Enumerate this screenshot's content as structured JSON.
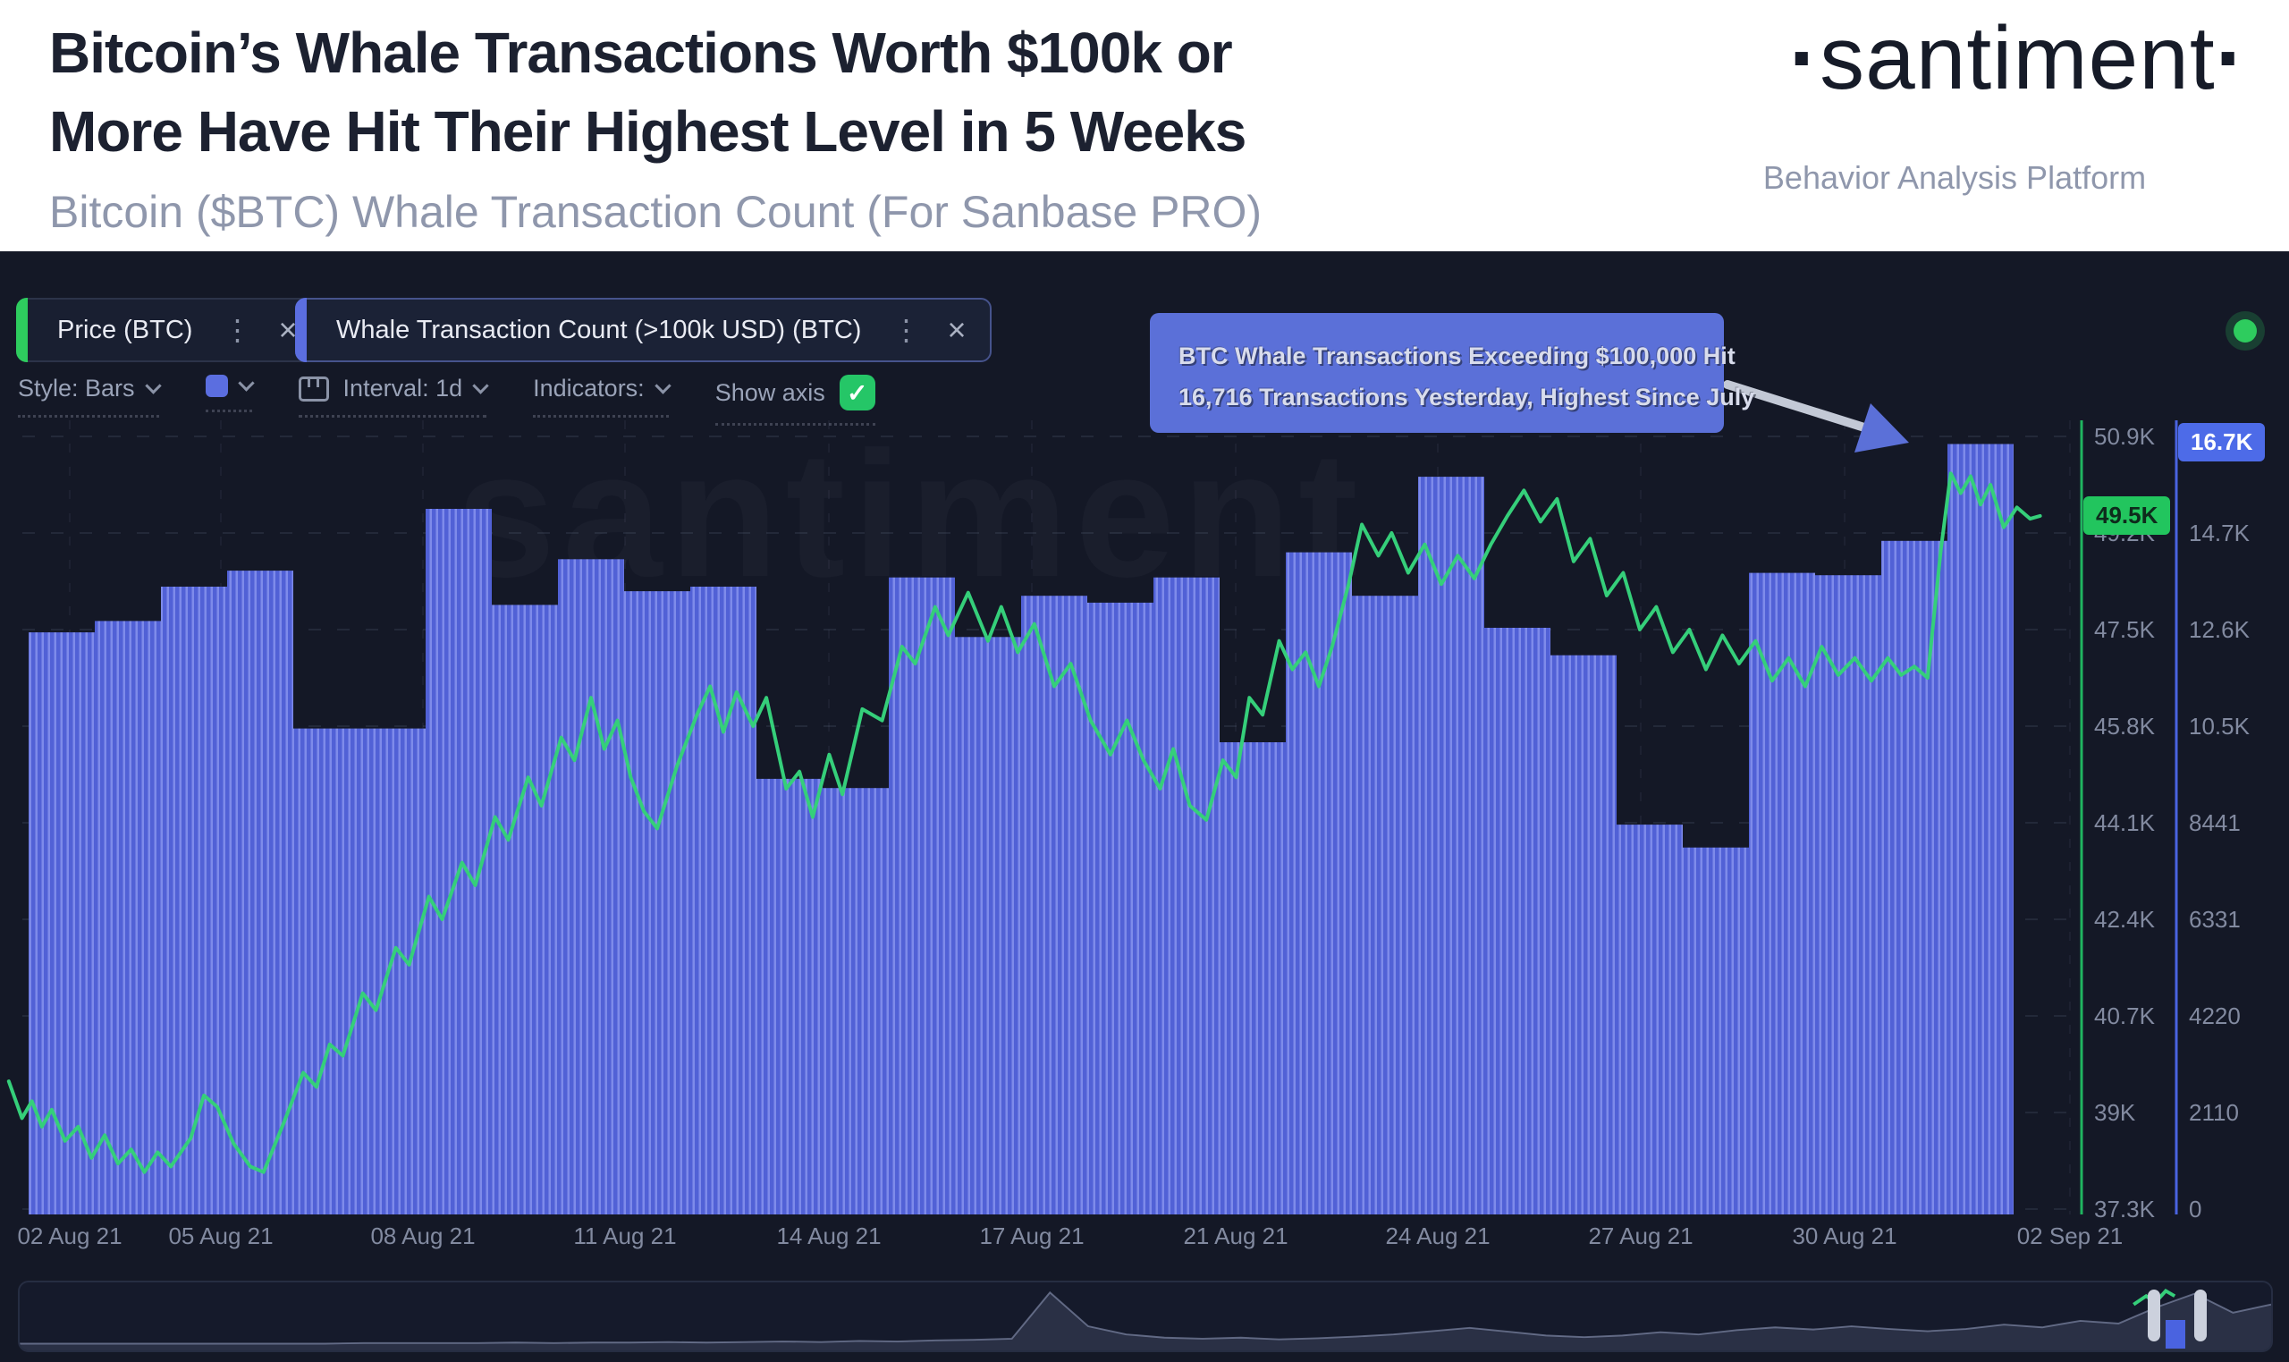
{
  "header": {
    "title_line1": "Bitcoin’s Whale Transactions Worth $100k or",
    "title_line2": "More Have Hit Their Highest Level in 5 Weeks",
    "subtitle": "Bitcoin ($BTC) Whale Transaction Count (For Sanbase PRO)",
    "logo_dot": "·",
    "logo_text": "santiment",
    "logo_tagline": "Behavior Analysis Platform"
  },
  "toolbar": {
    "menu_glyph": "⋮",
    "close_glyph": "×",
    "tabs": [
      {
        "label": "Price (BTC)",
        "accent_color": "#2ecc5e"
      },
      {
        "label": "Whale Transaction Count (>100k USD) (BTC)",
        "accent_color": "#5b6ee0"
      }
    ],
    "style_label": "Style: Bars",
    "interval_label": "Interval: 1d",
    "indicators_label": "Indicators:",
    "show_axis_label": "Show axis",
    "checkbox_glyph": "✓",
    "series_color_chip": "#5b6ee0"
  },
  "annotation": {
    "line1": "BTC Whale Transactions Exceeding $100,000 Hit",
    "line2": "16,716 Transactions Yesterday, Highest Since July"
  },
  "axes": {
    "price_ticks": [
      "50.9K",
      "49.2K",
      "47.5K",
      "45.8K",
      "44.1K",
      "42.4K",
      "40.7K",
      "39K",
      "37.3K"
    ],
    "count_ticks": [
      "16.8K",
      "14.7K",
      "12.6K",
      "10.5K",
      "8441",
      "6331",
      "4220",
      "2110",
      "0"
    ],
    "price_badge": "49.5K",
    "count_badge": "16.7K",
    "price_axis_color": "#1fb45f",
    "count_axis_color": "#4a63e0"
  },
  "x_labels": [
    "02 Aug 21",
    "05 Aug 21",
    "08 Aug 21",
    "11 Aug 21",
    "14 Aug 21",
    "17 Aug 21",
    "21 Aug 21",
    "24 Aug 21",
    "27 Aug 21",
    "30 Aug 21",
    "02 Sep 21"
  ],
  "chart_data": {
    "type": "bar+line",
    "title": "Bitcoin (BTC) price vs Whale Transaction Count (>100k USD), daily, 02 Aug 21 – 02 Sep 21",
    "x_labels": [
      "02 Aug 21",
      "05 Aug 21",
      "08 Aug 21",
      "11 Aug 21",
      "14 Aug 21",
      "17 Aug 21",
      "21 Aug 21",
      "24 Aug 21",
      "27 Aug 21",
      "30 Aug 21",
      "02 Sep 21"
    ],
    "x_gridlines": [
      78,
      247,
      473,
      699,
      927,
      1154,
      1382,
      1608,
      1835,
      2063,
      2315
    ],
    "bar_series": {
      "name": "Whale Transaction Count (>100k USD) (BTC)",
      "color": "#5b6ce0",
      "axis": "right",
      "ylim": [
        0,
        16882
      ],
      "tick_values": [
        16882,
        14772,
        12661,
        10551,
        8441,
        6331,
        4220,
        2110,
        0
      ],
      "values": [
        12600,
        12850,
        13600,
        13950,
        10500,
        10500,
        15300,
        13200,
        14200,
        13500,
        13600,
        9400,
        9200,
        13800,
        12500,
        13400,
        13250,
        13800,
        10200,
        14350,
        13400,
        16000,
        12700,
        12100,
        8400,
        7900,
        13900,
        13850,
        14600,
        16716
      ],
      "peak_value": 16716,
      "current_value": 16716
    },
    "line_series": {
      "name": "Price (BTC)",
      "color": "#35cf7a",
      "axis": "left",
      "ylim": [
        37300,
        50900
      ],
      "tick_values": [
        50900,
        49200,
        47500,
        45800,
        44100,
        42400,
        40700,
        39000,
        37300
      ],
      "current_value": 49500,
      "points": [
        [
          -0.8,
          39.55
        ],
        [
          -0.6,
          38.9
        ],
        [
          -0.45,
          39.2
        ],
        [
          -0.3,
          38.75
        ],
        [
          -0.15,
          39.05
        ],
        [
          0.05,
          38.5
        ],
        [
          0.25,
          38.75
        ],
        [
          0.45,
          38.2
        ],
        [
          0.65,
          38.6
        ],
        [
          0.85,
          38.1
        ],
        [
          1.05,
          38.35
        ],
        [
          1.25,
          37.95
        ],
        [
          1.45,
          38.3
        ],
        [
          1.65,
          38.05
        ],
        [
          1.95,
          38.55
        ],
        [
          2.15,
          39.3
        ],
        [
          2.35,
          39.1
        ],
        [
          2.6,
          38.45
        ],
        [
          2.85,
          38.05
        ],
        [
          3.05,
          37.95
        ],
        [
          3.35,
          38.8
        ],
        [
          3.65,
          39.7
        ],
        [
          3.85,
          39.45
        ],
        [
          4.05,
          40.2
        ],
        [
          4.25,
          40.0
        ],
        [
          4.55,
          41.1
        ],
        [
          4.75,
          40.8
        ],
        [
          5.05,
          41.9
        ],
        [
          5.25,
          41.6
        ],
        [
          5.55,
          42.8
        ],
        [
          5.75,
          42.4
        ],
        [
          6.05,
          43.4
        ],
        [
          6.25,
          43.0
        ],
        [
          6.55,
          44.2
        ],
        [
          6.75,
          43.8
        ],
        [
          7.05,
          44.9
        ],
        [
          7.25,
          44.4
        ],
        [
          7.55,
          45.6
        ],
        [
          7.75,
          45.2
        ],
        [
          8.0,
          46.3
        ],
        [
          8.2,
          45.4
        ],
        [
          8.4,
          45.9
        ],
        [
          8.6,
          44.9
        ],
        [
          8.8,
          44.3
        ],
        [
          9.0,
          44.0
        ],
        [
          9.3,
          45.1
        ],
        [
          9.6,
          46.0
        ],
        [
          9.8,
          46.5
        ],
        [
          10.0,
          45.7
        ],
        [
          10.2,
          46.4
        ],
        [
          10.45,
          45.8
        ],
        [
          10.65,
          46.3
        ],
        [
          10.95,
          44.7
        ],
        [
          11.15,
          45.0
        ],
        [
          11.35,
          44.2
        ],
        [
          11.6,
          45.3
        ],
        [
          11.8,
          44.6
        ],
        [
          12.1,
          46.1
        ],
        [
          12.4,
          45.9
        ],
        [
          12.7,
          47.2
        ],
        [
          12.9,
          46.9
        ],
        [
          13.2,
          47.9
        ],
        [
          13.4,
          47.4
        ],
        [
          13.7,
          48.15
        ],
        [
          14.0,
          47.3
        ],
        [
          14.2,
          47.9
        ],
        [
          14.45,
          47.1
        ],
        [
          14.7,
          47.6
        ],
        [
          15.0,
          46.5
        ],
        [
          15.25,
          46.9
        ],
        [
          15.55,
          45.9
        ],
        [
          15.85,
          45.3
        ],
        [
          16.1,
          45.9
        ],
        [
          16.35,
          45.2
        ],
        [
          16.6,
          44.7
        ],
        [
          16.8,
          45.4
        ],
        [
          17.05,
          44.4
        ],
        [
          17.3,
          44.15
        ],
        [
          17.55,
          45.2
        ],
        [
          17.75,
          44.9
        ],
        [
          17.95,
          46.3
        ],
        [
          18.15,
          46.0
        ],
        [
          18.4,
          47.3
        ],
        [
          18.6,
          46.8
        ],
        [
          18.8,
          47.1
        ],
        [
          19.0,
          46.5
        ],
        [
          19.2,
          47.2
        ],
        [
          19.45,
          48.3
        ],
        [
          19.65,
          49.35
        ],
        [
          19.9,
          48.8
        ],
        [
          20.1,
          49.2
        ],
        [
          20.35,
          48.5
        ],
        [
          20.6,
          49.0
        ],
        [
          20.85,
          48.3
        ],
        [
          21.1,
          48.8
        ],
        [
          21.35,
          48.4
        ],
        [
          21.6,
          49.0
        ],
        [
          21.85,
          49.5
        ],
        [
          22.1,
          49.95
        ],
        [
          22.35,
          49.4
        ],
        [
          22.6,
          49.8
        ],
        [
          22.85,
          48.7
        ],
        [
          23.1,
          49.1
        ],
        [
          23.35,
          48.1
        ],
        [
          23.6,
          48.5
        ],
        [
          23.85,
          47.5
        ],
        [
          24.1,
          47.9
        ],
        [
          24.35,
          47.1
        ],
        [
          24.6,
          47.5
        ],
        [
          24.85,
          46.8
        ],
        [
          25.1,
          47.4
        ],
        [
          25.35,
          46.9
        ],
        [
          25.6,
          47.3
        ],
        [
          25.85,
          46.6
        ],
        [
          26.1,
          47.0
        ],
        [
          26.35,
          46.5
        ],
        [
          26.6,
          47.2
        ],
        [
          26.85,
          46.7
        ],
        [
          27.1,
          47.0
        ],
        [
          27.35,
          46.6
        ],
        [
          27.6,
          47.0
        ],
        [
          27.8,
          46.7
        ],
        [
          28.0,
          46.85
        ],
        [
          28.2,
          46.65
        ],
        [
          28.4,
          48.9
        ],
        [
          28.55,
          50.25
        ],
        [
          28.7,
          49.9
        ],
        [
          28.85,
          50.2
        ],
        [
          29.0,
          49.7
        ],
        [
          29.15,
          50.05
        ],
        [
          29.35,
          49.3
        ],
        [
          29.55,
          49.65
        ],
        [
          29.75,
          49.45
        ],
        [
          29.9,
          49.5
        ]
      ]
    },
    "navigator_spark": [
      0.03,
      0.03,
      0.03,
      0.03,
      0.03,
      0.03,
      0.03,
      0.03,
      0.03,
      0.04,
      0.04,
      0.04,
      0.04,
      0.05,
      0.04,
      0.05,
      0.05,
      0.06,
      0.05,
      0.06,
      0.07,
      0.06,
      0.08,
      0.07,
      0.09,
      0.1,
      0.12,
      0.97,
      0.35,
      0.2,
      0.14,
      0.12,
      0.14,
      0.11,
      0.13,
      0.16,
      0.2,
      0.26,
      0.32,
      0.25,
      0.18,
      0.15,
      0.18,
      0.24,
      0.2,
      0.28,
      0.33,
      0.29,
      0.35,
      0.3,
      0.26,
      0.3,
      0.38,
      0.33,
      0.45,
      0.4,
      0.7,
      0.95,
      0.6,
      0.75
    ]
  }
}
